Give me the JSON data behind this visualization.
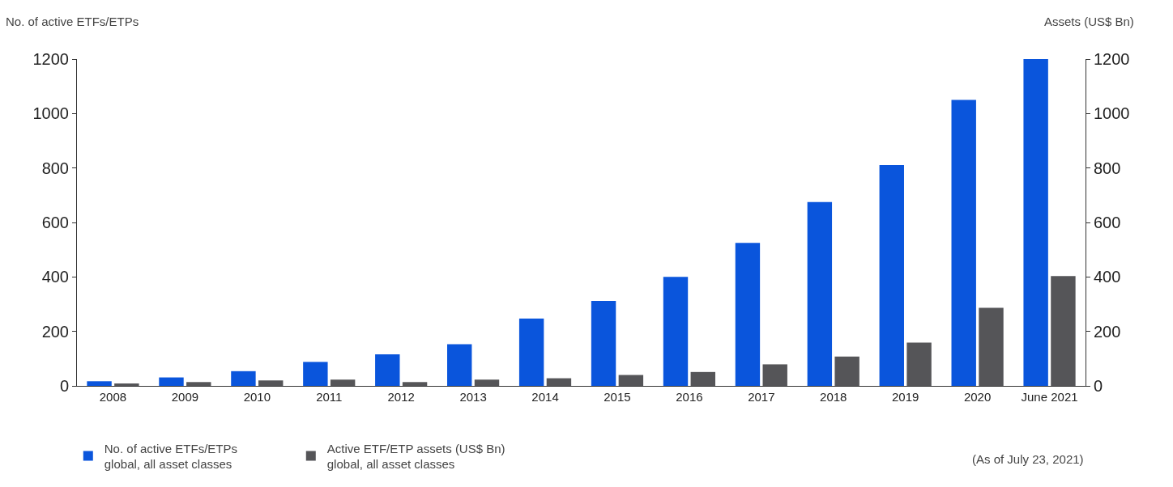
{
  "chart_data": {
    "type": "bar",
    "ylabel": "No. of active ETFs/ETPs",
    "y2label": "Assets (US$ Bn)",
    "categories": [
      "2008",
      "2009",
      "2010",
      "2011",
      "2012",
      "2013",
      "2014",
      "2015",
      "2016",
      "2017",
      "2018",
      "2019",
      "2020",
      "June 2021"
    ],
    "series": [
      {
        "name": "No. of active ETFs/ETPs\nglobal, all asset classes",
        "color": "#0a55dc",
        "values": [
          17,
          31,
          54,
          88,
          116,
          153,
          247,
          312,
          400,
          525,
          675,
          811,
          1050,
          1200
        ]
      },
      {
        "name": "Active ETF/ETP assets (US$ Bn)\nglobal, all asset classes",
        "color": "#555558",
        "axis": "y2",
        "values": [
          9,
          14,
          20,
          23,
          14,
          23,
          28,
          40,
          51,
          79,
          108,
          159,
          287,
          403
        ]
      }
    ],
    "ylim": [
      0,
      1200
    ],
    "yticks": [
      0,
      200,
      400,
      600,
      800,
      1000,
      1200
    ],
    "y2lim": [
      0,
      1200
    ],
    "y2ticks": [
      0,
      200,
      400,
      600,
      800,
      1000,
      1200
    ],
    "grid": false,
    "legend": "bottom left",
    "annotations": [
      "(As of July 23, 2021)"
    ]
  }
}
